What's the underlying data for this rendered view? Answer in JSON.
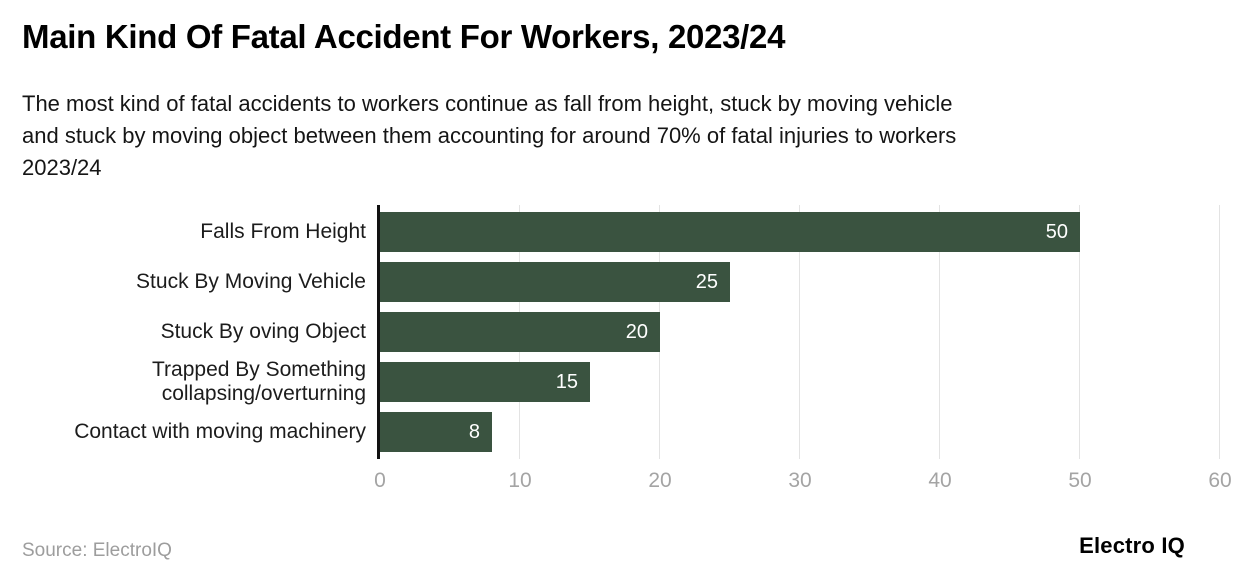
{
  "header": {
    "title": "Main Kind Of Fatal Accident For Workers, 2023/24",
    "subtitle": "The most kind of fatal accidents to workers continue as fall from height, stuck by moving vehicle\nand stuck by moving object between them accounting for around 70% of fatal injuries to workers\n2023/24"
  },
  "chart_data": {
    "type": "bar",
    "orientation": "horizontal",
    "title": "Main Kind Of Fatal Accident For Workers, 2023/24",
    "categories": [
      "Falls From Height",
      "Stuck By Moving Vehicle",
      "Stuck By oving Object",
      "Trapped By Something\ncollapsing/overturning",
      "Contact with moving machinery"
    ],
    "values": [
      50,
      25,
      20,
      15,
      8
    ],
    "xlabel": "",
    "ylabel": "",
    "xlim": [
      0,
      60
    ],
    "xticks": [
      0,
      10,
      20,
      30,
      40,
      50,
      60
    ],
    "grid": "vertical",
    "legend": "none",
    "bar_color": "#3a5340",
    "value_label_color": "#ffffff",
    "tick_label_color": "#a4a4a4",
    "gridline_color": "#e3e3e3",
    "axis_line_color": "#111111"
  },
  "footer": {
    "source": "Source: ElectroIQ",
    "brand": "Electro IQ"
  }
}
